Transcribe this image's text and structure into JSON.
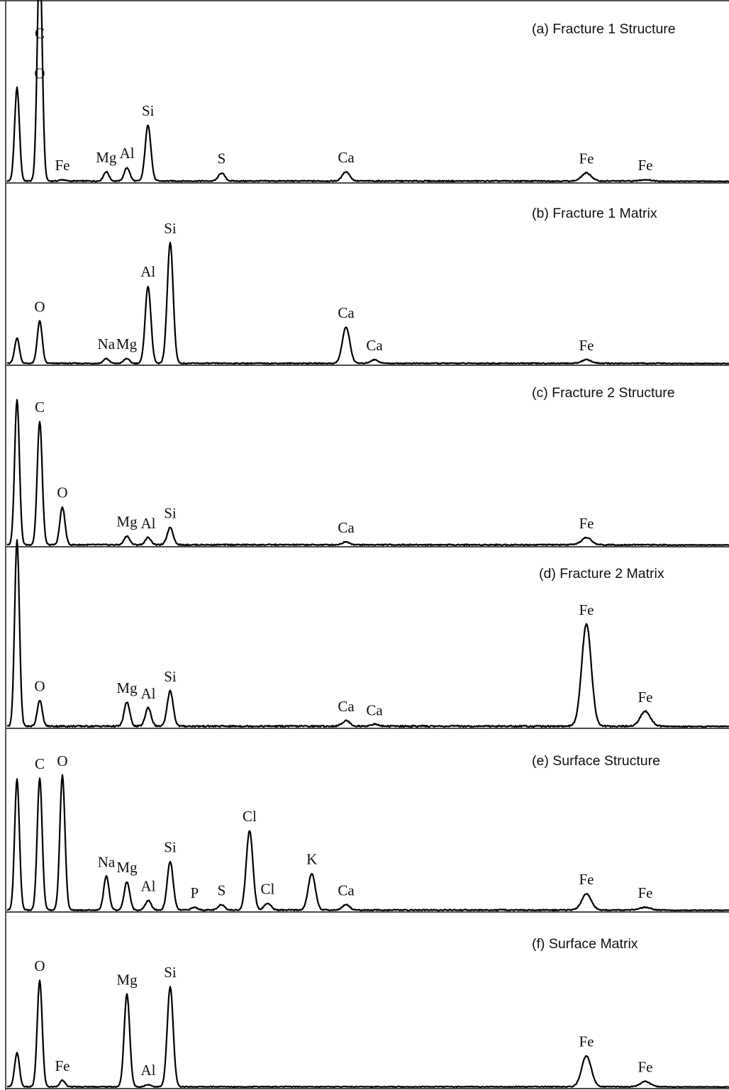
{
  "chart_data": [
    {
      "type": "line",
      "title": "(a)   Fracture 1 Structure",
      "peaks": [
        {
          "x": 0.277,
          "y": 0.7
        },
        {
          "x": 0.525,
          "y": 1.0,
          "label": "C"
        },
        {
          "x": 0.525,
          "y": 0.7,
          "label": "O"
        },
        {
          "x": 0.705,
          "y": 0.01,
          "label": "Fe"
        },
        {
          "x": 1.04,
          "y": 0.07,
          "label": "Mg"
        },
        {
          "x": 1.255,
          "y": 0.1,
          "label": "Al"
        },
        {
          "x": 1.485,
          "y": 0.42,
          "label": "Si"
        },
        {
          "x": 2.31,
          "y": 0.06,
          "label": "S"
        },
        {
          "x": 3.69,
          "y": 0.07,
          "label": "Ca"
        },
        {
          "x": 6.4,
          "y": 0.06,
          "label": "Fe"
        },
        {
          "x": 7.06,
          "y": 0.01,
          "label": "Fe"
        }
      ]
    },
    {
      "type": "line",
      "title": "(b)   Fracture 1 Matrix",
      "peaks": [
        {
          "x": 0.277,
          "y": 0.21
        },
        {
          "x": 0.525,
          "y": 0.35,
          "label": "O"
        },
        {
          "x": 1.04,
          "y": 0.04,
          "label": "Na"
        },
        {
          "x": 1.25,
          "y": 0.04,
          "label": "Mg"
        },
        {
          "x": 1.485,
          "y": 0.64,
          "label": "Al"
        },
        {
          "x": 1.74,
          "y": 1.0,
          "label": "Si"
        },
        {
          "x": 3.69,
          "y": 0.3,
          "label": "Ca"
        },
        {
          "x": 4.01,
          "y": 0.03,
          "label": "Ca"
        },
        {
          "x": 6.4,
          "y": 0.03,
          "label": "Fe"
        }
      ]
    },
    {
      "type": "line",
      "title": "(c)  Fracture 2 Structure",
      "peaks": [
        {
          "x": 0.277,
          "y": 1.0
        },
        {
          "x": 0.525,
          "y": 0.85,
          "label": "C"
        },
        {
          "x": 0.705,
          "y": 0.26,
          "label": "O"
        },
        {
          "x": 1.254,
          "y": 0.06,
          "label": "Mg"
        },
        {
          "x": 1.487,
          "y": 0.05,
          "label": "Al"
        },
        {
          "x": 1.74,
          "y": 0.12,
          "label": "Si"
        },
        {
          "x": 3.69,
          "y": 0.02,
          "label": "Ca"
        },
        {
          "x": 6.4,
          "y": 0.05,
          "label": "Fe"
        }
      ]
    },
    {
      "type": "line",
      "title": "(d)   Fracture 2 Matrix",
      "peaks": [
        {
          "x": 0.277,
          "y": 1.0
        },
        {
          "x": 0.525,
          "y": 0.14,
          "label": "O"
        },
        {
          "x": 1.254,
          "y": 0.13,
          "label": "Mg"
        },
        {
          "x": 1.487,
          "y": 0.1,
          "label": "Al"
        },
        {
          "x": 1.74,
          "y": 0.19,
          "label": "Si"
        },
        {
          "x": 3.69,
          "y": 0.03,
          "label": "Ca"
        },
        {
          "x": 4.01,
          "y": 0.01,
          "label": "Ca"
        },
        {
          "x": 6.4,
          "y": 0.55,
          "label": "Fe"
        },
        {
          "x": 7.06,
          "y": 0.08,
          "label": "Fe"
        }
      ]
    },
    {
      "type": "line",
      "title": "(e)   Surface Structure",
      "peaks": [
        {
          "x": 0.277,
          "y": 0.97
        },
        {
          "x": 0.525,
          "y": 0.98,
          "label": "C"
        },
        {
          "x": 0.705,
          "y": 1.0,
          "label": "O"
        },
        {
          "x": 1.041,
          "y": 0.25,
          "label": "Na"
        },
        {
          "x": 1.254,
          "y": 0.21,
          "label": "Mg"
        },
        {
          "x": 1.487,
          "y": 0.07,
          "label": "Al"
        },
        {
          "x": 1.74,
          "y": 0.36,
          "label": "Si"
        },
        {
          "x": 2.01,
          "y": 0.02,
          "label": "P"
        },
        {
          "x": 2.31,
          "y": 0.04,
          "label": "S"
        },
        {
          "x": 2.62,
          "y": 0.59,
          "label": "Cl"
        },
        {
          "x": 2.82,
          "y": 0.05,
          "label": "Cl"
        },
        {
          "x": 3.31,
          "y": 0.27,
          "label": "K"
        },
        {
          "x": 3.69,
          "y": 0.04,
          "label": "Ca"
        },
        {
          "x": 6.4,
          "y": 0.12,
          "label": "Fe"
        },
        {
          "x": 7.06,
          "y": 0.02,
          "label": "Fe"
        }
      ]
    },
    {
      "type": "line",
      "title": "(f)   Surface Matrix",
      "peaks": [
        {
          "x": 0.277,
          "y": 0.32
        },
        {
          "x": 0.525,
          "y": 1.0,
          "label": "O"
        },
        {
          "x": 0.705,
          "y": 0.06,
          "label": "Fe"
        },
        {
          "x": 1.254,
          "y": 0.87,
          "label": "Mg"
        },
        {
          "x": 1.487,
          "y": 0.02,
          "label": "Al"
        },
        {
          "x": 1.74,
          "y": 0.94,
          "label": "Si"
        },
        {
          "x": 6.4,
          "y": 0.29,
          "label": "Fe"
        },
        {
          "x": 7.06,
          "y": 0.05,
          "label": "Fe"
        }
      ]
    }
  ]
}
